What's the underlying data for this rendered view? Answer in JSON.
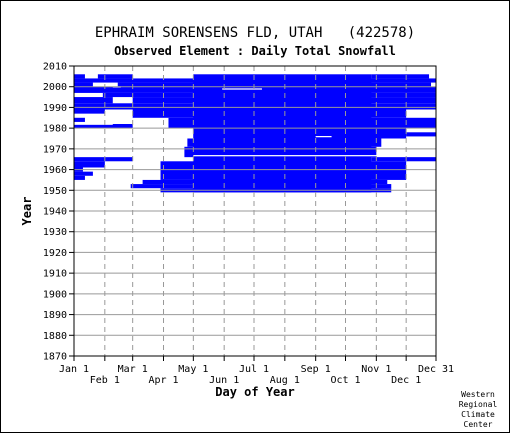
{
  "chart_data": {
    "type": "heatmap",
    "title": "EPHRAIM SORENSENS FLD, UTAH   (422578)",
    "subtitle": "Observed Element : Daily Total Snowfall",
    "xlabel": "Day of Year",
    "ylabel": "Year",
    "x_ticks_upper": [
      "Jan 1",
      "Mar 1",
      "May 1",
      "Jul 1",
      "Sep 1",
      "Nov 1",
      "Dec 31"
    ],
    "x_ticks_upper_days": [
      1,
      60,
      121,
      182,
      244,
      305,
      365
    ],
    "x_ticks_lower": [
      "Feb 1",
      "Apr 1",
      "Jun 1",
      "Aug 1",
      "Oct 1",
      "Dec 1"
    ],
    "x_ticks_lower_days": [
      32,
      91,
      152,
      213,
      274,
      335
    ],
    "xlim": [
      1,
      365
    ],
    "y_ticks": [
      "1870",
      "1880",
      "1890",
      "1900",
      "1910",
      "1920",
      "1930",
      "1940",
      "1950",
      "1960",
      "1970",
      "1980",
      "1990",
      "2000",
      "2010"
    ],
    "ylim": [
      1870,
      2010
    ],
    "grid": true,
    "data_color": "#0000ff",
    "observed_segments": [
      {
        "y0": 1949,
        "y1": 2006,
        "d0": 121,
        "d1": 300
      },
      {
        "y0": 1949,
        "y1": 1951,
        "d0": 88,
        "d1": 320
      },
      {
        "y0": 1951,
        "y1": 1953,
        "d0": 58,
        "d1": 320
      },
      {
        "y0": 1953,
        "y1": 1955,
        "d0": 70,
        "d1": 316
      },
      {
        "y0": 1955,
        "y1": 1964,
        "d0": 88,
        "d1": 335
      },
      {
        "y0": 1955,
        "y1": 1957,
        "d0": 1,
        "d1": 12
      },
      {
        "y0": 1957,
        "y1": 1959,
        "d0": 1,
        "d1": 20
      },
      {
        "y0": 1959,
        "y1": 1961,
        "d0": 1,
        "d1": 10
      },
      {
        "y0": 1961,
        "y1": 1964,
        "d0": 1,
        "d1": 32
      },
      {
        "y0": 1964,
        "y1": 1966,
        "d0": 1,
        "d1": 60
      },
      {
        "y0": 1964,
        "y1": 1966,
        "d0": 300,
        "d1": 365
      },
      {
        "y0": 1966,
        "y1": 1971,
        "d0": 112,
        "d1": 305
      },
      {
        "y0": 1971,
        "y1": 1975,
        "d0": 115,
        "d1": 310
      },
      {
        "y0": 1975,
        "y1": 1980,
        "d0": 121,
        "d1": 335
      },
      {
        "y0": 1976,
        "y1": 1978,
        "d0": 335,
        "d1": 365
      },
      {
        "y0": 1980,
        "y1": 1982,
        "d0": 1,
        "d1": 60
      },
      {
        "y0": 1980,
        "y1": 1985,
        "d0": 96,
        "d1": 365
      },
      {
        "y0": 1983,
        "y1": 1985,
        "d0": 1,
        "d1": 12
      },
      {
        "y0": 1985,
        "y1": 1989,
        "d0": 60,
        "d1": 335
      },
      {
        "y0": 1987,
        "y1": 1989,
        "d0": 1,
        "d1": 32
      },
      {
        "y0": 1989,
        "y1": 1992,
        "d0": 1,
        "d1": 365
      },
      {
        "y0": 1992,
        "y1": 1995,
        "d0": 1,
        "d1": 40
      },
      {
        "y0": 1992,
        "y1": 1995,
        "d0": 60,
        "d1": 365
      },
      {
        "y0": 1995,
        "y1": 1997,
        "d0": 30,
        "d1": 365
      },
      {
        "y0": 1997,
        "y1": 2000,
        "d0": 1,
        "d1": 365
      },
      {
        "y0": 2000,
        "y1": 2002,
        "d0": 1,
        "d1": 20
      },
      {
        "y0": 2000,
        "y1": 2002,
        "d0": 45,
        "d1": 360
      },
      {
        "y0": 2002,
        "y1": 2004,
        "d0": 1,
        "d1": 365
      },
      {
        "y0": 2004,
        "y1": 2006,
        "d0": 1,
        "d1": 12
      },
      {
        "y0": 2004,
        "y1": 2006,
        "d0": 25,
        "d1": 60
      },
      {
        "y0": 2004,
        "y1": 2006,
        "d0": 300,
        "d1": 358
      }
    ],
    "gap_segments": [
      {
        "y0": 1966.4,
        "y1": 1967.0,
        "d0": 121,
        "d1": 335
      },
      {
        "y0": 1975.6,
        "y1": 1976.2,
        "d0": 244,
        "d1": 260
      },
      {
        "y0": 1998.6,
        "y1": 1999.2,
        "d0": 150,
        "d1": 190
      },
      {
        "y0": 1999.6,
        "y1": 2000.2,
        "d0": 40,
        "d1": 48
      },
      {
        "y0": 1981.6,
        "y1": 1982.2,
        "d0": 1,
        "d1": 40
      }
    ]
  },
  "credit_lines": [
    "Western",
    "Regional",
    "Climate",
    "Center"
  ]
}
